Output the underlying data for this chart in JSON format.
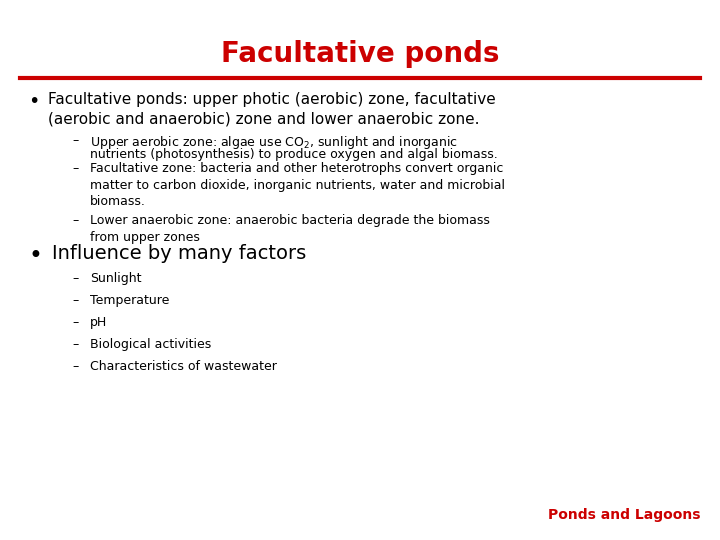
{
  "title": "Facultative ponds",
  "title_color": "#cc0000",
  "title_fontsize": 20,
  "title_fontweight": "bold",
  "line_color": "#cc0000",
  "background_color": "#ffffff",
  "bullet1_text": "Facultative ponds: upper photic (aerobic) zone, facultative\n(aerobic and anaerobic) zone and lower anaerobic zone.",
  "bullet1_fontsize": 11,
  "sub1a": "Upper aerobic zone: algae use CO",
  "sub1b": "2",
  "sub1c": ", sunlight and inorganic",
  "sub1d": "nutrients (photosynthesis) to produce oxygen and algal biomass.",
  "sub2": "Facultative zone: bacteria and other heterotrophs convert organic\nmatter to carbon dioxide, inorganic nutrients, water and microbial\nbiomass.",
  "sub3": "Lower anaerobic zone: anaerobic bacteria degrade the biomass\nfrom upper zones",
  "sub_fontsize": 9,
  "bullet2_text": "Influence by many factors",
  "bullet2_fontsize": 14,
  "factors": [
    "Sunlight",
    "Temperature",
    "pH",
    "Biological activities",
    "Characteristics of wastewater"
  ],
  "factors_fontsize": 9,
  "footer_text": "Ponds and Lagoons",
  "footer_color": "#cc0000",
  "footer_fontsize": 10,
  "footer_fontweight": "bold",
  "text_color": "#000000",
  "font_family": "sans-serif"
}
